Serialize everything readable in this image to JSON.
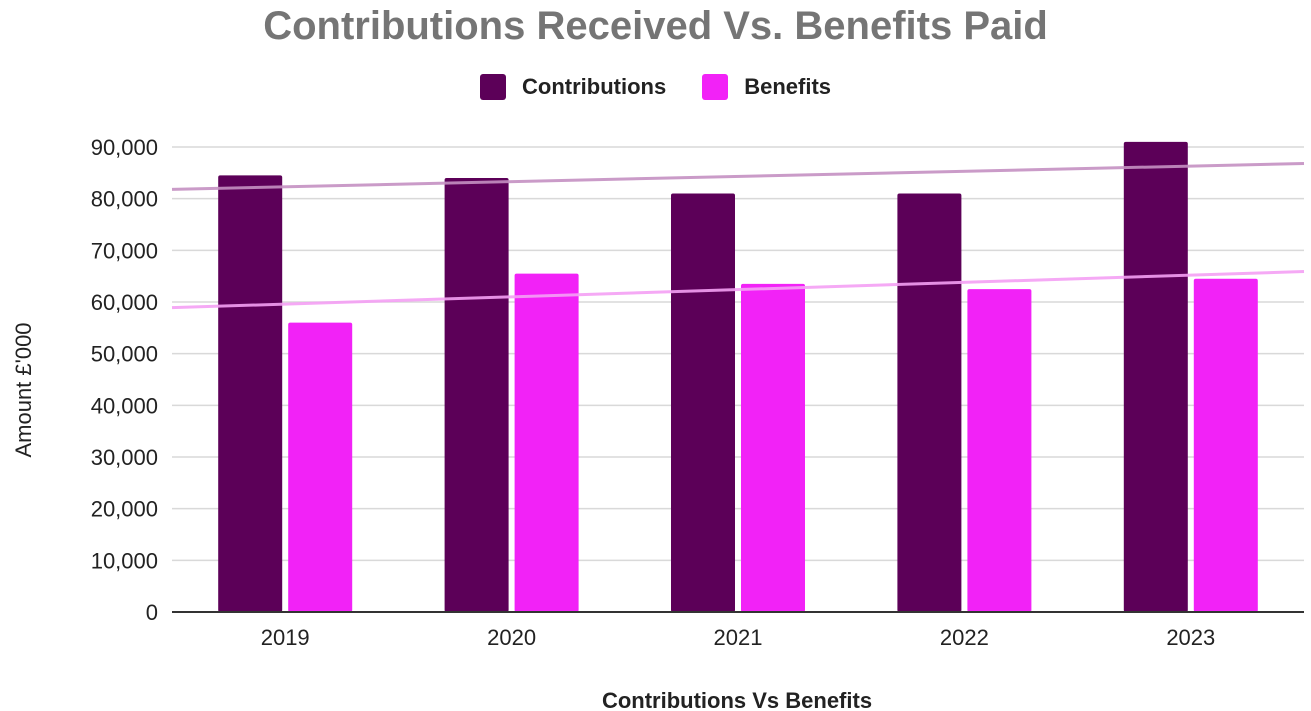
{
  "chart_data": {
    "type": "bar",
    "title": "Contributions Received Vs. Benefits Paid",
    "xlabel": "Contributions Vs Benefits",
    "ylabel": "Amount £'000",
    "categories": [
      "2019",
      "2020",
      "2021",
      "2022",
      "2023"
    ],
    "series": [
      {
        "name": "Contributions",
        "color": "#5c0058",
        "values": [
          84500,
          84000,
          81000,
          81000,
          91000
        ]
      },
      {
        "name": "Benefits",
        "color": "#f222f7",
        "values": [
          56000,
          65500,
          63500,
          62500,
          64500
        ]
      }
    ],
    "trendlines": [
      {
        "series": "Contributions",
        "color": "#c490c2"
      },
      {
        "series": "Benefits",
        "color": "#f4a0f4"
      }
    ],
    "ylim": [
      0,
      90000
    ],
    "yticks": [
      0,
      10000,
      20000,
      30000,
      40000,
      50000,
      60000,
      70000,
      80000,
      90000
    ],
    "ytick_labels": [
      "0",
      "10,000",
      "20,000",
      "30,000",
      "40,000",
      "50,000",
      "60,000",
      "70,000",
      "80,000",
      "90,000"
    ],
    "grid": true,
    "legend_position": "top"
  }
}
